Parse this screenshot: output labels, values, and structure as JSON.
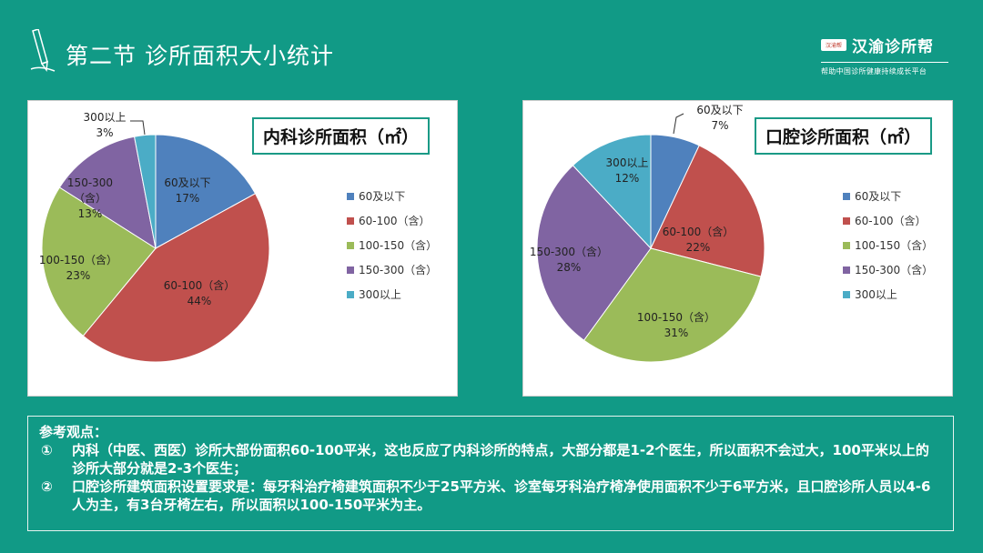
{
  "header": {
    "title": "第二节  诊所面积大小统计"
  },
  "brand": {
    "name": "汉渝诊所帮",
    "logo_text": "汉渝帮",
    "tagline": "帮助中国诊所健康持续成长平台"
  },
  "legend_colors": [
    "#4f81bd",
    "#c0504d",
    "#9bbb59",
    "#8064a2",
    "#4bacc6"
  ],
  "chart_data": [
    {
      "type": "pie",
      "title": "内科诊所面积（㎡）",
      "categories": [
        "60及以下",
        "60-100（含）",
        "100-150（含）",
        "150-300（含）",
        "300以上"
      ],
      "values": [
        17,
        44,
        23,
        13,
        3
      ],
      "labels": [
        [
          "60及以下",
          "17%"
        ],
        [
          "60-100（含）",
          "44%"
        ],
        [
          "100-150（含）",
          "23%"
        ],
        [
          "150-300",
          "（含）",
          "13%"
        ],
        [
          "300以上",
          "3%"
        ]
      ],
      "legend": "right"
    },
    {
      "type": "pie",
      "title": "口腔诊所面积（㎡）",
      "categories": [
        "60及以下",
        "60-100（含）",
        "100-150（含）",
        "150-300（含）",
        "300以上"
      ],
      "values": [
        7,
        22,
        31,
        28,
        12
      ],
      "labels": [
        [
          "60及以下",
          "7%"
        ],
        [
          "60-100（含）",
          "22%"
        ],
        [
          "100-150（含）",
          "31%"
        ],
        [
          "150-300（含）",
          "28%"
        ],
        [
          "300以上",
          "12%"
        ]
      ],
      "legend": "right"
    }
  ],
  "notes": {
    "heading": "参考观点：",
    "items": [
      {
        "num": "①",
        "text": "内科（中医、西医）诊所大部份面积60-100平米，这也反应了内科诊所的特点，大部分都是1-2个医生，所以面积不会过大，100平米以上的诊所大部分就是2-3个医生；"
      },
      {
        "num": "②",
        "text": "口腔诊所建筑面积设置要求是：每牙科治疗椅建筑面积不少于25平方米、诊室每牙科治疗椅净使用面积不少于6平方米，且口腔诊所人员以4-6人为主，有3台牙椅左右，所以面积以100-150平米为主。"
      }
    ]
  }
}
